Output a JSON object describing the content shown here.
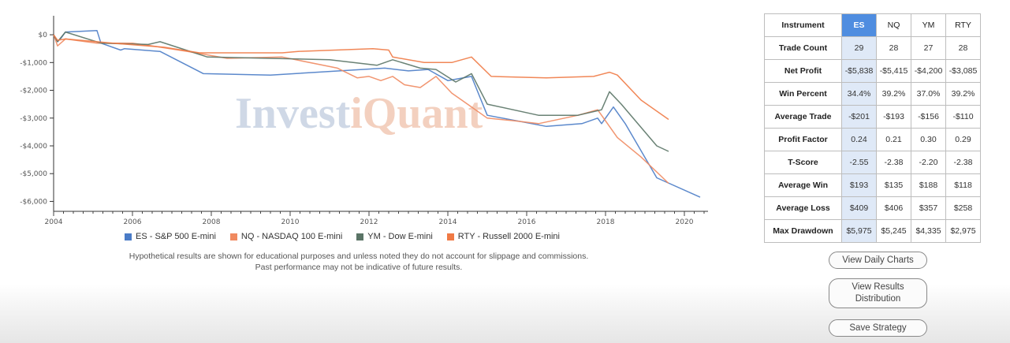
{
  "chart_data": {
    "type": "line",
    "title": "",
    "xlabel": "",
    "ylabel": "",
    "xlim": [
      2004,
      2020.6
    ],
    "ylim": [
      -6300,
      400
    ],
    "x_ticks": [
      {
        "value": 2004,
        "label": "2004"
      },
      {
        "value": 2006,
        "label": "2006"
      },
      {
        "value": 2008,
        "label": "2008"
      },
      {
        "value": 2010,
        "label": "2010"
      },
      {
        "value": 2012,
        "label": "2012"
      },
      {
        "value": 2014,
        "label": "2014"
      },
      {
        "value": 2016,
        "label": "2016"
      },
      {
        "value": 2018,
        "label": "2018"
      },
      {
        "value": 2020,
        "label": "2020"
      }
    ],
    "y_ticks": [
      {
        "value": 0,
        "label": "$0"
      },
      {
        "value": -1000,
        "label": "-$1,000"
      },
      {
        "value": -2000,
        "label": "-$2,000"
      },
      {
        "value": -3000,
        "label": "-$3,000"
      },
      {
        "value": -4000,
        "label": "-$4,000"
      },
      {
        "value": -5000,
        "label": "-$5,000"
      },
      {
        "value": -6000,
        "label": "-$6,000"
      }
    ],
    "grid": false,
    "legend_position": "bottom",
    "series": [
      {
        "name": "ES - S&P 500 E-mini",
        "color": "#4a7cc7",
        "points": [
          [
            2004,
            0
          ],
          [
            2004.1,
            -250
          ],
          [
            2004.2,
            -100
          ],
          [
            2004.3,
            100
          ],
          [
            2005.1,
            150
          ],
          [
            2005.2,
            -300
          ],
          [
            2005.7,
            -550
          ],
          [
            2005.8,
            -500
          ],
          [
            2006.7,
            -600
          ],
          [
            2007.8,
            -1400
          ],
          [
            2009.5,
            -1450
          ],
          [
            2012.4,
            -1200
          ],
          [
            2013,
            -1300
          ],
          [
            2013.5,
            -1250
          ],
          [
            2014,
            -1650
          ],
          [
            2014.6,
            -1500
          ],
          [
            2015,
            -2900
          ],
          [
            2016.5,
            -3300
          ],
          [
            2017.4,
            -3200
          ],
          [
            2017.8,
            -3000
          ],
          [
            2017.9,
            -3200
          ],
          [
            2018.2,
            -2600
          ],
          [
            2018.5,
            -3200
          ],
          [
            2019.3,
            -5150
          ],
          [
            2020.4,
            -5850
          ]
        ]
      },
      {
        "name": "NQ - NASDAQ 100 E-mini",
        "color": "#f08a60",
        "points": [
          [
            2004,
            0
          ],
          [
            2004.1,
            -400
          ],
          [
            2004.3,
            -150
          ],
          [
            2005.1,
            -300
          ],
          [
            2006,
            -300
          ],
          [
            2006.5,
            -400
          ],
          [
            2007.4,
            -600
          ],
          [
            2008.4,
            -850
          ],
          [
            2009.8,
            -800
          ],
          [
            2011.2,
            -1200
          ],
          [
            2011.7,
            -1550
          ],
          [
            2012,
            -1500
          ],
          [
            2012.3,
            -1650
          ],
          [
            2012.6,
            -1500
          ],
          [
            2012.9,
            -1800
          ],
          [
            2013.3,
            -1900
          ],
          [
            2013.7,
            -1500
          ],
          [
            2014.1,
            -2100
          ],
          [
            2014.5,
            -2500
          ],
          [
            2015,
            -3000
          ],
          [
            2015.7,
            -3100
          ],
          [
            2016.3,
            -3200
          ],
          [
            2017.3,
            -2900
          ],
          [
            2017.8,
            -2700
          ],
          [
            2018.3,
            -3700
          ],
          [
            2018.9,
            -4400
          ],
          [
            2019.6,
            -5350
          ]
        ]
      },
      {
        "name": "YM - Dow E-mini",
        "color": "#5a7466",
        "points": [
          [
            2004,
            0
          ],
          [
            2004.1,
            -250
          ],
          [
            2004.3,
            100
          ],
          [
            2005.2,
            -300
          ],
          [
            2006.4,
            -350
          ],
          [
            2006.7,
            -250
          ],
          [
            2007.9,
            -800
          ],
          [
            2009.5,
            -850
          ],
          [
            2011,
            -900
          ],
          [
            2012.2,
            -1100
          ],
          [
            2012.6,
            -900
          ],
          [
            2013.3,
            -1200
          ],
          [
            2013.7,
            -1250
          ],
          [
            2014.2,
            -1700
          ],
          [
            2014.6,
            -1400
          ],
          [
            2015,
            -2500
          ],
          [
            2016.3,
            -2900
          ],
          [
            2017.3,
            -2900
          ],
          [
            2017.9,
            -2700
          ],
          [
            2018.1,
            -2050
          ],
          [
            2018.4,
            -2500
          ],
          [
            2019.3,
            -4000
          ],
          [
            2019.6,
            -4200
          ]
        ]
      },
      {
        "name": "RTY - Russell 2000 E-mini",
        "color": "#f07a45",
        "points": [
          [
            2004,
            0
          ],
          [
            2004.1,
            -200
          ],
          [
            2004.3,
            -150
          ],
          [
            2005.5,
            -300
          ],
          [
            2006.8,
            -450
          ],
          [
            2007.7,
            -650
          ],
          [
            2009.8,
            -650
          ],
          [
            2010.2,
            -600
          ],
          [
            2012.1,
            -500
          ],
          [
            2012.5,
            -550
          ],
          [
            2012.6,
            -800
          ],
          [
            2013.4,
            -1000
          ],
          [
            2014.1,
            -1000
          ],
          [
            2014.6,
            -800
          ],
          [
            2015.1,
            -1500
          ],
          [
            2016.5,
            -1550
          ],
          [
            2017.7,
            -1500
          ],
          [
            2018.1,
            -1350
          ],
          [
            2018.3,
            -1450
          ],
          [
            2018.9,
            -2350
          ],
          [
            2019.6,
            -3050
          ]
        ]
      }
    ],
    "watermark": {
      "part1": "Invest",
      "part2": "iQuant"
    }
  },
  "legend": [
    {
      "label": "ES - S&P 500 E-mini",
      "color": "#4a7cc7"
    },
    {
      "label": "NQ - NASDAQ 100 E-mini",
      "color": "#f08a60"
    },
    {
      "label": "YM - Dow E-mini",
      "color": "#5a7466"
    },
    {
      "label": "RTY - Russell 2000 E-mini",
      "color": "#f07a45"
    }
  ],
  "disclaimer": {
    "line1": "Hypothetical results are shown for educational purposes and unless noted they do not account for slippage and commissions.",
    "line2": "Past performance may not be indicative of future results."
  },
  "table": {
    "header": [
      "Instrument",
      "ES",
      "NQ",
      "YM",
      "RTY"
    ],
    "active_column": "ES",
    "rows": [
      {
        "label": "Trade Count",
        "values": [
          "29",
          "28",
          "27",
          "28"
        ]
      },
      {
        "label": "Net Profit",
        "values": [
          "-$5,838",
          "-$5,415",
          "-$4,200",
          "-$3,085"
        ]
      },
      {
        "label": "Win Percent",
        "values": [
          "34.4%",
          "39.2%",
          "37.0%",
          "39.2%"
        ]
      },
      {
        "label": "Average Trade",
        "values": [
          "-$201",
          "-$193",
          "-$156",
          "-$110"
        ]
      },
      {
        "label": "Profit Factor",
        "values": [
          "0.24",
          "0.21",
          "0.30",
          "0.29"
        ]
      },
      {
        "label": "T-Score",
        "values": [
          "-2.55",
          "-2.38",
          "-2.20",
          "-2.38"
        ]
      },
      {
        "label": "Average Win",
        "values": [
          "$193",
          "$135",
          "$188",
          "$118"
        ]
      },
      {
        "label": "Average Loss",
        "values": [
          "$409",
          "$406",
          "$357",
          "$258"
        ]
      },
      {
        "label": "Max Drawdown",
        "values": [
          "$5,975",
          "$5,245",
          "$4,335",
          "$2,975"
        ]
      }
    ]
  },
  "buttons": {
    "daily_charts": "View Daily Charts",
    "results_distribution_line1": "View Results",
    "results_distribution_line2": "Distribution",
    "save_strategy": "Save Strategy"
  }
}
